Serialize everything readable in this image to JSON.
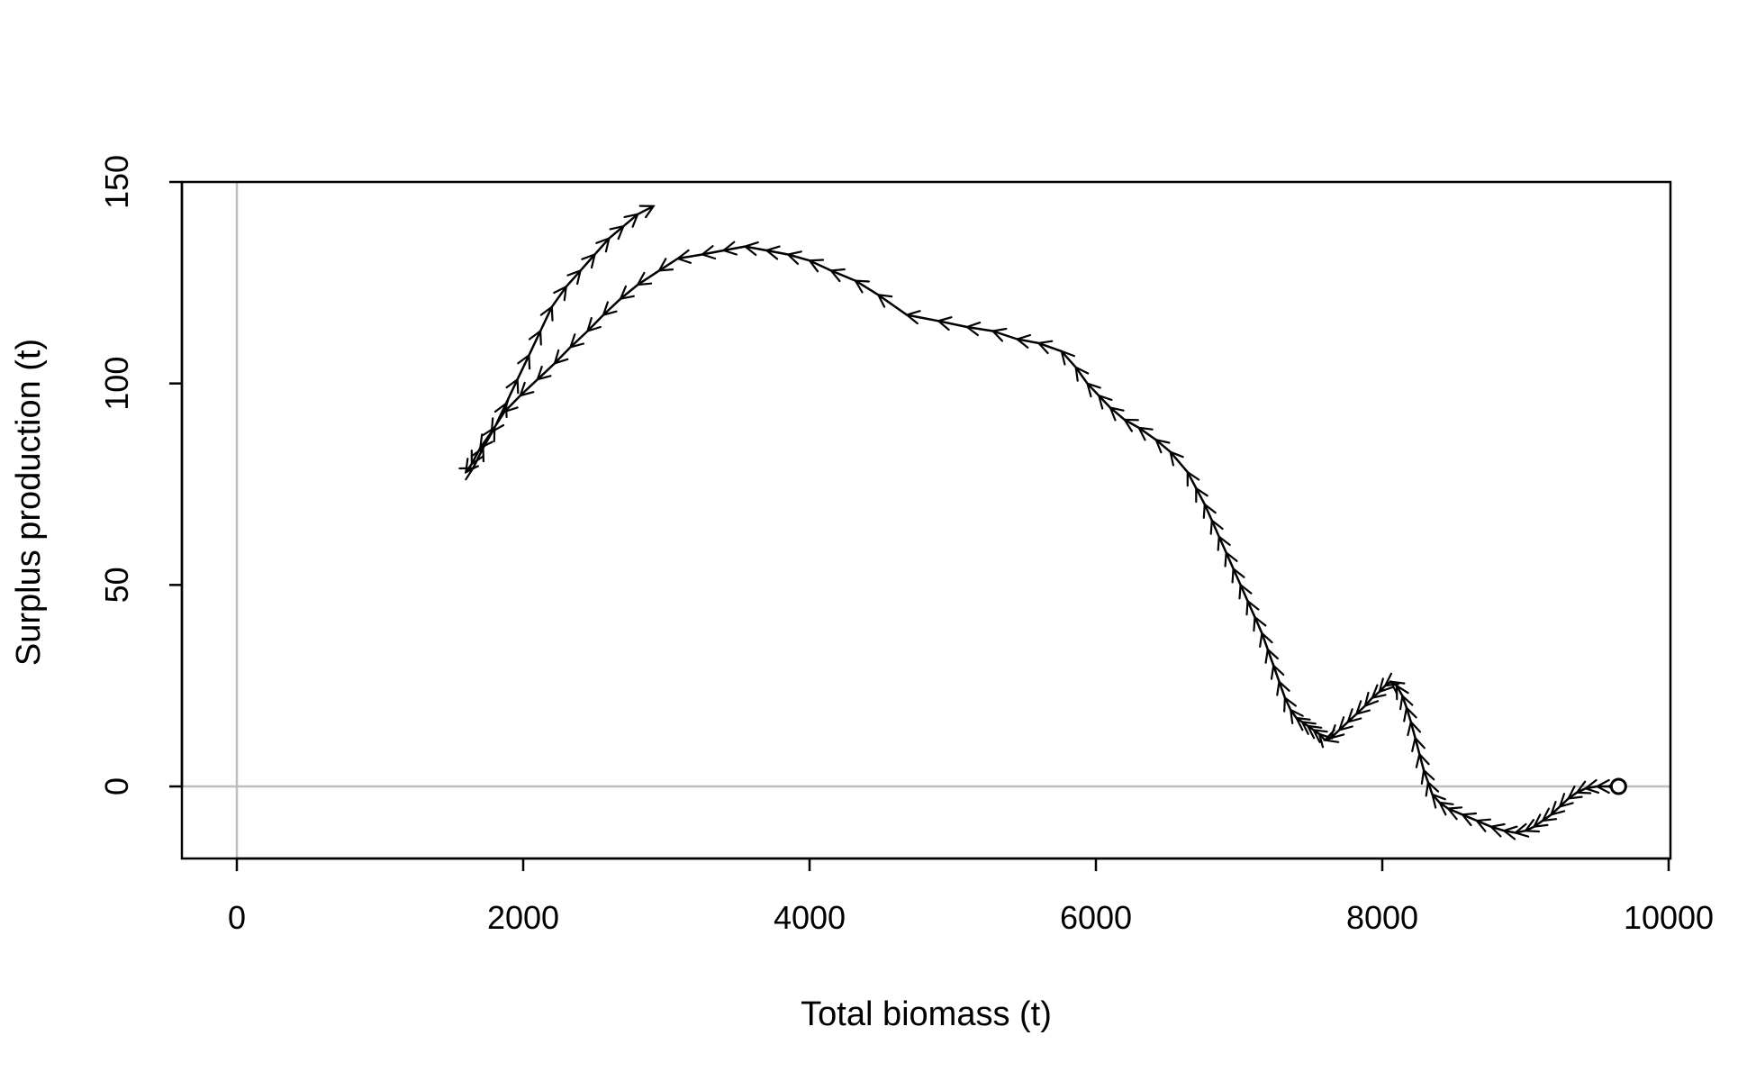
{
  "chart_data": {
    "type": "line",
    "title": "",
    "xlabel": "Total biomass (t)",
    "ylabel": "Surplus production (t)",
    "xlim": [
      0,
      10000
    ],
    "ylim": [
      -18,
      150
    ],
    "x_ticks": [
      "0",
      "2000",
      "4000",
      "6000",
      "8000",
      "10000"
    ],
    "y_ticks": [
      "0",
      "50",
      "100",
      "150"
    ],
    "reference_lines": {
      "x": 0,
      "y": 0,
      "color": "#bebebe"
    },
    "line_color": "#000000",
    "start_marker": "open-circle",
    "grid": false,
    "series": [
      {
        "x": [
          9650,
          9580,
          9500,
          9420,
          9360,
          9300,
          9240,
          9180,
          9120,
          9060,
          9000,
          8930,
          8850,
          8760,
          8660,
          8560,
          8460,
          8400,
          8350,
          8320,
          8290,
          8260,
          8230,
          8200,
          8170,
          8140,
          8100,
          8060,
          8020,
          7980,
          7930,
          7880,
          7820,
          7760,
          7700,
          7640,
          7600,
          7560,
          7520,
          7480,
          7440,
          7400,
          7360,
          7320,
          7280,
          7240,
          7200,
          7160,
          7110,
          7060,
          7010,
          6960,
          6910,
          6860,
          6810,
          6760,
          6700,
          6640,
          6520,
          6420,
          6300,
          6200,
          6100,
          6020,
          5940,
          5860,
          5760,
          5600,
          5450,
          5280,
          5100,
          4900,
          4680,
          4480,
          4320,
          4150,
          4000,
          3850,
          3700,
          3550,
          3400,
          3250,
          3080,
          2950,
          2800,
          2680,
          2560,
          2450,
          2330,
          2220,
          2100,
          1980,
          1870,
          1780,
          1700,
          1640,
          1600,
          1650,
          1720,
          1800,
          1880,
          1960,
          2040,
          2120,
          2200,
          2300,
          2400,
          2500,
          2600,
          2700,
          2800,
          2910
        ],
        "y": [
          0,
          0,
          0,
          -0.5,
          -1.5,
          -3,
          -5,
          -7,
          -8.5,
          -10,
          -11,
          -11.5,
          -11,
          -10,
          -8.5,
          -7,
          -5.5,
          -4,
          -2,
          1,
          4,
          8,
          12,
          16,
          19.5,
          22.5,
          25,
          26,
          25,
          23.5,
          22,
          20,
          18,
          16,
          14,
          12,
          11.5,
          13,
          14,
          15,
          16,
          17,
          19,
          22,
          26,
          30,
          34,
          38,
          42,
          46,
          50,
          54,
          58,
          62,
          66,
          70,
          74,
          78,
          83,
          86,
          89,
          91,
          94,
          97,
          100,
          104,
          108,
          110,
          111,
          113,
          114,
          115.5,
          117,
          122,
          125.5,
          128,
          130.5,
          132,
          133,
          134,
          133,
          132,
          131,
          128,
          124.5,
          121,
          117,
          113,
          109,
          105,
          101,
          97,
          93,
          88,
          84,
          80,
          78,
          79,
          84,
          89,
          95,
          101,
          107,
          113,
          119,
          124,
          128,
          132,
          136,
          139,
          142,
          144
        ]
      }
    ]
  }
}
